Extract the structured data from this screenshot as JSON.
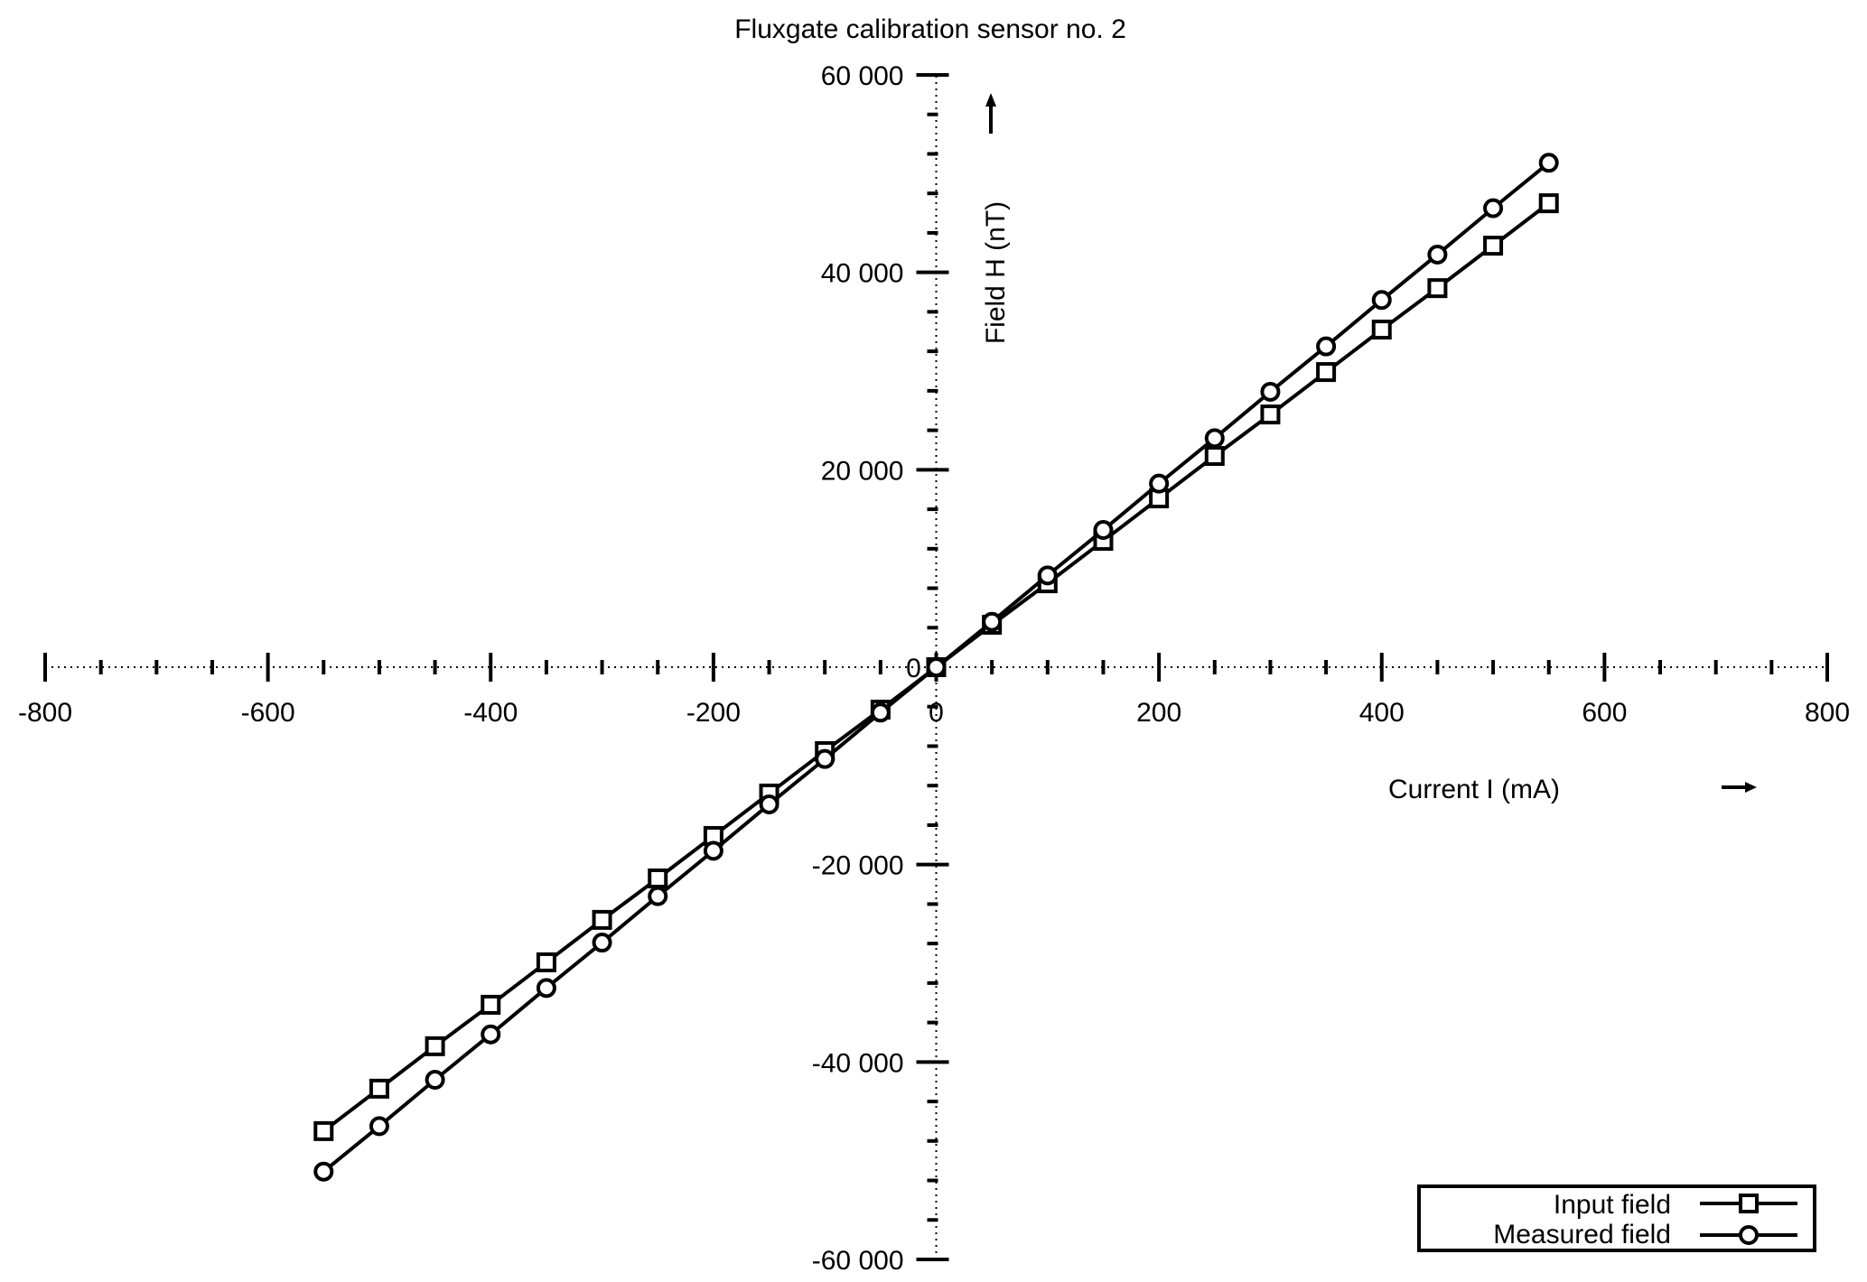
{
  "chart_data": {
    "type": "line",
    "title": "Fluxgate calibration sensor no. 2",
    "xlabel": "Current I (mA)",
    "ylabel": "Field H (nT)",
    "xlim": [
      -800,
      800
    ],
    "ylim": [
      -60000,
      60000
    ],
    "x_ticks": [
      -800,
      -600,
      -400,
      -200,
      0,
      200,
      400,
      600,
      800
    ],
    "x_tick_labels": [
      "-800",
      "-600",
      "-400",
      "-200",
      "0",
      "200",
      "400",
      "600",
      "800"
    ],
    "y_ticks": [
      -60000,
      -40000,
      -20000,
      20000,
      40000,
      60000
    ],
    "y_tick_labels": [
      "-60 000",
      "-40 000",
      "-20 000",
      "20 000",
      "40 000",
      "60 000"
    ],
    "grid": false,
    "axes_through_origin": true,
    "legend_position": "bottom-right",
    "x": [
      -550,
      -500,
      -450,
      -400,
      -350,
      -300,
      -250,
      -200,
      -150,
      -100,
      -50,
      0,
      50,
      100,
      150,
      200,
      250,
      300,
      350,
      400,
      450,
      500,
      550
    ],
    "series": [
      {
        "name": "Input field",
        "marker": "square",
        "values": [
          -47000,
          -42700,
          -38400,
          -34200,
          -29900,
          -25600,
          -21400,
          -17100,
          -12800,
          -8500,
          -4300,
          0,
          4300,
          8500,
          12800,
          17100,
          21400,
          25600,
          29900,
          34200,
          38400,
          42700,
          47000
        ]
      },
      {
        "name": "Measured field",
        "marker": "circle",
        "values": [
          -51100,
          -46500,
          -41800,
          -37200,
          -32500,
          -27900,
          -23200,
          -18600,
          -13900,
          -9300,
          -4600,
          0,
          4600,
          9300,
          13900,
          18600,
          23200,
          27900,
          32500,
          37200,
          41800,
          46500,
          51100
        ]
      }
    ],
    "line_color": "#000000"
  }
}
